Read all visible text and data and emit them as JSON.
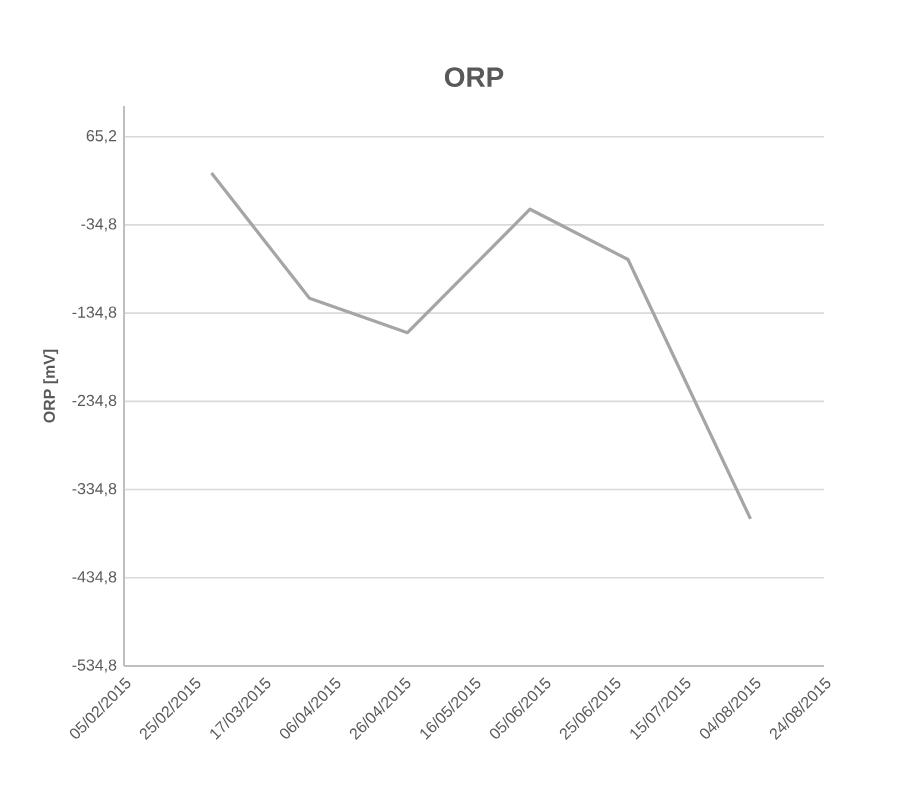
{
  "chart_data": {
    "type": "line",
    "title": "ORP",
    "ylabel": "ORP [mV]",
    "x": [
      "2015-03-02",
      "2015-03-30",
      "2015-04-27",
      "2015-06-01",
      "2015-06-29",
      "2015-08-03"
    ],
    "series": [
      {
        "color": "#a5a5a5",
        "values": [
          24,
          -118,
          -157,
          -17,
          -74,
          -368
        ]
      }
    ],
    "xlim": [
      "2015-02-05",
      "2015-08-24"
    ],
    "xticks": [
      {
        "value": "2015-02-05",
        "label": "05/02/2015"
      },
      {
        "value": "2015-02-25",
        "label": "25/02/2015"
      },
      {
        "value": "2015-03-17",
        "label": "17/03/2015"
      },
      {
        "value": "2015-04-06",
        "label": "06/04/2015"
      },
      {
        "value": "2015-04-26",
        "label": "26/04/2015"
      },
      {
        "value": "2015-05-16",
        "label": "16/05/2015"
      },
      {
        "value": "2015-06-05",
        "label": "05/06/2015"
      },
      {
        "value": "2015-06-25",
        "label": "25/06/2015"
      },
      {
        "value": "2015-07-15",
        "label": "15/07/2015"
      },
      {
        "value": "2015-08-04",
        "label": "04/08/2015"
      },
      {
        "value": "2015-08-24",
        "label": "24/08/2015"
      }
    ],
    "ylim": [
      -534.8,
      100
    ],
    "yticks": [
      {
        "value": -534.8,
        "label": "-534,8"
      },
      {
        "value": -434.8,
        "label": "-434,8"
      },
      {
        "value": -334.8,
        "label": "-334,8"
      },
      {
        "value": -234.8,
        "label": "-234,8"
      },
      {
        "value": -134.8,
        "label": "-134,8"
      },
      {
        "value": -34.8,
        "label": "-34,8"
      },
      {
        "value": 65.2,
        "label": "65,2"
      }
    ],
    "grid": "y",
    "legend": false,
    "marker": "none",
    "line_style": "solid"
  }
}
